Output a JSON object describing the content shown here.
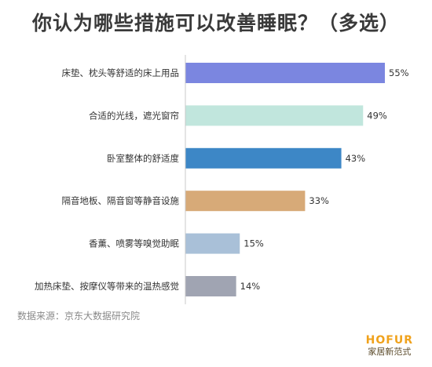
{
  "title": "你认为哪些措施可以改善睡眠？（多选）",
  "source": "数据来源：京东大数据研究院",
  "brand": {
    "name": "HOFUR",
    "tagline": "家居新范式"
  },
  "chart_data": {
    "type": "bar",
    "orientation": "horizontal",
    "categories": [
      "床垫、枕头等舒适的床上用品",
      "合适的光线，遮光窗帘",
      "卧室整体的舒适度",
      "隔音地板、隔音窗等静音设施",
      "香薰、喷雾等嗅觉助眠",
      "加热床垫、按摩仪等带来的温热感觉"
    ],
    "values": [
      55,
      49,
      43,
      33,
      15,
      14
    ],
    "value_labels": [
      "55%",
      "49%",
      "43%",
      "33%",
      "15%",
      "14%"
    ],
    "colors": [
      "#7b86e0",
      "#c1e6dd",
      "#3d87c6",
      "#d7aa78",
      "#a9c0d8",
      "#a0a4b2"
    ],
    "xlim": [
      0,
      55
    ],
    "grid": false
  }
}
